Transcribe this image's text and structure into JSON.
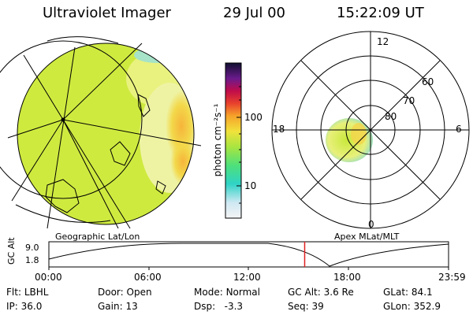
{
  "header": {
    "instrument": "Ultraviolet Imager",
    "date": "29 Jul 00",
    "time": "15:22:09 UT"
  },
  "colorbar": {
    "unit_label": "photon cm⁻²s⁻¹",
    "tick_100": "100",
    "tick_10": "10"
  },
  "polar_plot": {
    "mlt_labels": {
      "top": "12",
      "left": "18",
      "right": "6",
      "bottom": "0"
    },
    "lat_labels": [
      "60",
      "70",
      "80"
    ]
  },
  "timeline": {
    "left_title": "Geographic Lat/Lon",
    "right_title": "Apex MLat/MLT",
    "y_axis_label": "GC Alt",
    "y_ticks": [
      "9.0",
      "1.8"
    ],
    "x_ticks": [
      "00:00",
      "06:00",
      "12:00",
      "18:00",
      "23:59"
    ],
    "current_time_fraction": 0.64
  },
  "info": {
    "row1": [
      {
        "label": "Flt:",
        "value": "LBHL"
      },
      {
        "label": "Door:",
        "value": "Open"
      },
      {
        "label": "Mode:",
        "value": "Normal"
      },
      {
        "label": "GC Alt:",
        "value": "3.6 Re"
      },
      {
        "label": "GLat:",
        "value": "84.1"
      }
    ],
    "row2": [
      {
        "label": "IP:",
        "value": "36.0"
      },
      {
        "label": "Gain:",
        "value": "13"
      },
      {
        "label": "Dsp:",
        "value": "-3.3"
      },
      {
        "label": "Seq:",
        "value": "39"
      },
      {
        "label": "GLon:",
        "value": "352.9"
      }
    ]
  },
  "colors": {
    "marker": "#e02020",
    "aurora_base": "#c8e83a"
  }
}
